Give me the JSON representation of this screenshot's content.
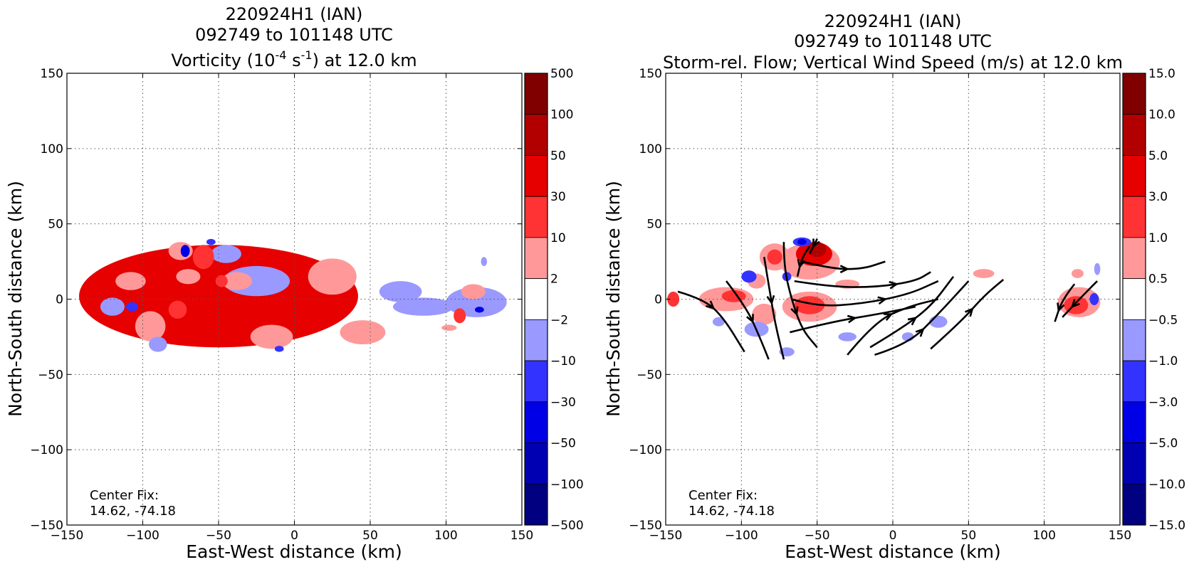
{
  "chart_data": [
    {
      "type": "heatmap",
      "title_lines": [
        "220924H1 (IAN)",
        "092749 to 101148 UTC"
      ],
      "title_var": {
        "pre": "Vorticity (10",
        "sup1": "-4",
        "mid": " s",
        "sup2": "-1",
        "post": ") at 12.0 km"
      },
      "xlabel": "East-West distance (km)",
      "ylabel": "North-South distance (km)",
      "xlim": [
        -150,
        150
      ],
      "ylim": [
        -150,
        150
      ],
      "xticks": [
        -150,
        -100,
        -50,
        0,
        50,
        100,
        150
      ],
      "yticks": [
        -150,
        -100,
        -50,
        0,
        50,
        100,
        150
      ],
      "xtick_labels": [
        "−150",
        "−100",
        "−50",
        "0",
        "50",
        "100",
        "150"
      ],
      "ytick_labels": [
        "−150",
        "−100",
        "−50",
        "0",
        "50",
        "100",
        "150"
      ],
      "grid": true,
      "annotation": [
        "Center Fix:",
        "14.62, -74.18"
      ],
      "colorbar": {
        "levels": [
          "500",
          "100",
          "50",
          "30",
          "10",
          "2",
          "−2",
          "−10",
          "−30",
          "−50",
          "−100",
          "−500"
        ],
        "colors": [
          "#800000",
          "#b20000",
          "#e60000",
          "#ff3333",
          "#ff9999",
          "#ffffff",
          "#9999ff",
          "#3333ff",
          "#0000e6",
          "#0000b2",
          "#000080"
        ]
      },
      "regions": [
        {
          "x": -50,
          "y": 2,
          "rx": 92,
          "ry": 34,
          "level": 2
        },
        {
          "x": -25,
          "y": 12,
          "rx": 22,
          "ry": 10,
          "level": 6
        },
        {
          "x": 85,
          "y": -5,
          "rx": 20,
          "ry": 6,
          "level": 6
        },
        {
          "x": 25,
          "y": 15,
          "rx": 16,
          "ry": 12,
          "level": 4
        },
        {
          "x": -38,
          "y": 12,
          "rx": 10,
          "ry": 6,
          "level": 4
        },
        {
          "x": -75,
          "y": 32,
          "rx": 8,
          "ry": 6,
          "level": 4
        },
        {
          "x": -70,
          "y": 15,
          "rx": 8,
          "ry": 5,
          "level": 4
        },
        {
          "x": -108,
          "y": 12,
          "rx": 10,
          "ry": 6,
          "level": 4
        },
        {
          "x": -95,
          "y": -18,
          "rx": 10,
          "ry": 10,
          "level": 4
        },
        {
          "x": -15,
          "y": -25,
          "rx": 14,
          "ry": 8,
          "level": 4
        },
        {
          "x": 45,
          "y": -22,
          "rx": 15,
          "ry": 8,
          "level": 4
        },
        {
          "x": -45,
          "y": 30,
          "rx": 10,
          "ry": 6,
          "level": 6
        },
        {
          "x": -120,
          "y": -5,
          "rx": 8,
          "ry": 6,
          "level": 6
        },
        {
          "x": -90,
          "y": -30,
          "rx": 6,
          "ry": 5,
          "level": 6
        },
        {
          "x": 70,
          "y": 5,
          "rx": 14,
          "ry": 7,
          "level": 6
        },
        {
          "x": -60,
          "y": 28,
          "rx": 7,
          "ry": 8,
          "level": 3
        },
        {
          "x": -77,
          "y": -7,
          "rx": 6,
          "ry": 6,
          "level": 3
        },
        {
          "x": -48,
          "y": 12,
          "rx": 4,
          "ry": 4,
          "level": 3
        },
        {
          "x": -72,
          "y": 32,
          "rx": 3,
          "ry": 4,
          "level": 8
        },
        {
          "x": -107,
          "y": -5,
          "rx": 4,
          "ry": 3,
          "level": 7
        },
        {
          "x": -55,
          "y": 38,
          "rx": 3,
          "ry": 2,
          "level": 7
        },
        {
          "x": -10,
          "y": -33,
          "rx": 3,
          "ry": 2,
          "level": 7
        },
        {
          "x": 120,
          "y": -2,
          "rx": 20,
          "ry": 10,
          "level": 6
        },
        {
          "x": 118,
          "y": 5,
          "rx": 8,
          "ry": 5,
          "level": 4
        },
        {
          "x": 109,
          "y": -11,
          "rx": 4,
          "ry": 5,
          "level": 3
        },
        {
          "x": 122,
          "y": -7,
          "rx": 3,
          "ry": 2,
          "level": 8
        },
        {
          "x": 102,
          "y": -19,
          "rx": 5,
          "ry": 2,
          "level": 4
        },
        {
          "x": 125,
          "y": 25,
          "rx": 2,
          "ry": 3,
          "level": 6
        }
      ]
    },
    {
      "type": "heatmap",
      "title_lines": [
        "220924H1 (IAN)",
        "092749 to 101148 UTC"
      ],
      "title_var": {
        "pre": "Storm-rel. Flow; Vertical Wind Speed (m/s) at 12.0 km",
        "sup1": "",
        "mid": "",
        "sup2": "",
        "post": ""
      },
      "xlabel": "East-West distance (km)",
      "ylabel": "North-South distance (km)",
      "xlim": [
        -150,
        150
      ],
      "ylim": [
        -150,
        150
      ],
      "xticks": [
        -150,
        -100,
        -50,
        0,
        50,
        100,
        150
      ],
      "yticks": [
        -150,
        -100,
        -50,
        0,
        50,
        100,
        150
      ],
      "xtick_labels": [
        "−150",
        "−100",
        "−50",
        "0",
        "50",
        "100",
        "150"
      ],
      "ytick_labels": [
        "−150",
        "−100",
        "−50",
        "0",
        "50",
        "100",
        "150"
      ],
      "grid": true,
      "annotation": [
        "Center Fix:",
        "14.62, -74.18"
      ],
      "colorbar": {
        "levels": [
          "15.0",
          "10.0",
          "5.0",
          "3.0",
          "1.0",
          "0.5",
          "−0.5",
          "−1.0",
          "−3.0",
          "−5.0",
          "−10.0",
          "−15.0"
        ],
        "colors": [
          "#800000",
          "#b20000",
          "#e60000",
          "#ff3333",
          "#ff9999",
          "#ffffff",
          "#9999ff",
          "#3333ff",
          "#0000e6",
          "#0000b2",
          "#000080"
        ]
      },
      "regions": [
        {
          "x": -55,
          "y": 25,
          "rx": 20,
          "ry": 12,
          "level": 4
        },
        {
          "x": -52,
          "y": 30,
          "rx": 12,
          "ry": 8,
          "level": 2
        },
        {
          "x": -50,
          "y": 33,
          "rx": 6,
          "ry": 5,
          "level": 1
        },
        {
          "x": -78,
          "y": 28,
          "rx": 10,
          "ry": 9,
          "level": 4
        },
        {
          "x": -78,
          "y": 28,
          "rx": 5,
          "ry": 5,
          "level": 3
        },
        {
          "x": -55,
          "y": -5,
          "rx": 18,
          "ry": 10,
          "level": 4
        },
        {
          "x": -55,
          "y": -4,
          "rx": 10,
          "ry": 6,
          "level": 3
        },
        {
          "x": -110,
          "y": 0,
          "rx": 18,
          "ry": 8,
          "level": 4
        },
        {
          "x": -105,
          "y": 2,
          "rx": 8,
          "ry": 4,
          "level": 3
        },
        {
          "x": -145,
          "y": 0,
          "rx": 4,
          "ry": 5,
          "level": 3
        },
        {
          "x": -85,
          "y": -10,
          "rx": 8,
          "ry": 7,
          "level": 4
        },
        {
          "x": -90,
          "y": 12,
          "rx": 6,
          "ry": 5,
          "level": 4
        },
        {
          "x": -30,
          "y": 10,
          "rx": 8,
          "ry": 3,
          "level": 4
        },
        {
          "x": 60,
          "y": 17,
          "rx": 7,
          "ry": 3,
          "level": 4
        },
        {
          "x": 123,
          "y": -2,
          "rx": 14,
          "ry": 10,
          "level": 4
        },
        {
          "x": 121,
          "y": -4,
          "rx": 8,
          "ry": 6,
          "level": 3
        },
        {
          "x": 122,
          "y": 17,
          "rx": 4,
          "ry": 3,
          "level": 4
        },
        {
          "x": -60,
          "y": 38,
          "rx": 6,
          "ry": 3,
          "level": 7
        },
        {
          "x": -60,
          "y": 38,
          "rx": 3,
          "ry": 2,
          "level": 8
        },
        {
          "x": -95,
          "y": 15,
          "rx": 5,
          "ry": 4,
          "level": 7
        },
        {
          "x": -70,
          "y": 15,
          "rx": 3,
          "ry": 3,
          "level": 7
        },
        {
          "x": -90,
          "y": -20,
          "rx": 8,
          "ry": 5,
          "level": 6
        },
        {
          "x": -30,
          "y": -25,
          "rx": 6,
          "ry": 3,
          "level": 6
        },
        {
          "x": -70,
          "y": -35,
          "rx": 5,
          "ry": 3,
          "level": 6
        },
        {
          "x": 30,
          "y": -15,
          "rx": 6,
          "ry": 4,
          "level": 6
        },
        {
          "x": 10,
          "y": -25,
          "rx": 4,
          "ry": 3,
          "level": 6
        },
        {
          "x": -115,
          "y": -15,
          "rx": 4,
          "ry": 3,
          "level": 6
        },
        {
          "x": 135,
          "y": 20,
          "rx": 2,
          "ry": 4,
          "level": 6
        },
        {
          "x": 133,
          "y": 0,
          "rx": 3,
          "ry": 4,
          "level": 7
        }
      ],
      "streamlines": [
        [
          [
            -142,
            5
          ],
          [
            -125,
            0
          ],
          [
            -112,
            -12
          ],
          [
            -98,
            -35
          ]
        ],
        [
          [
            -110,
            12
          ],
          [
            -97,
            -5
          ],
          [
            -88,
            -25
          ],
          [
            -82,
            -40
          ]
        ],
        [
          [
            -85,
            28
          ],
          [
            -82,
            10
          ],
          [
            -78,
            -15
          ],
          [
            -72,
            -40
          ]
        ],
        [
          [
            -72,
            38
          ],
          [
            -72,
            22
          ],
          [
            -67,
            0
          ],
          [
            -60,
            -20
          ],
          [
            -50,
            -32
          ]
        ],
        [
          [
            -30,
            -37
          ],
          [
            -12,
            -15
          ],
          [
            10,
            -5
          ],
          [
            30,
            0
          ]
        ],
        [
          [
            -15,
            -32
          ],
          [
            5,
            -20
          ],
          [
            25,
            -5
          ],
          [
            40,
            15
          ]
        ],
        [
          [
            -12,
            -37
          ],
          [
            10,
            -30
          ],
          [
            30,
            -10
          ],
          [
            50,
            12
          ]
        ],
        [
          [
            25,
            -33
          ],
          [
            45,
            -15
          ],
          [
            60,
            2
          ],
          [
            73,
            13
          ]
        ],
        [
          [
            -68,
            -22
          ],
          [
            -40,
            -15
          ],
          [
            -10,
            -10
          ],
          [
            15,
            -5
          ]
        ],
        [
          [
            -67,
            0
          ],
          [
            -50,
            -5
          ],
          [
            -20,
            -3
          ],
          [
            10,
            3
          ],
          [
            30,
            12
          ]
        ],
        [
          [
            -65,
            12
          ],
          [
            -40,
            8
          ],
          [
            -10,
            8
          ],
          [
            15,
            12
          ],
          [
            25,
            18
          ]
        ],
        [
          [
            -60,
            25
          ],
          [
            -40,
            20
          ],
          [
            -20,
            20
          ],
          [
            -5,
            25
          ]
        ],
        [
          [
            -55,
            35
          ],
          [
            -60,
            28
          ],
          [
            -63,
            15
          ]
        ],
        [
          [
            -50,
            40
          ],
          [
            -55,
            30
          ]
        ],
        [
          [
            120,
            10
          ],
          [
            112,
            0
          ],
          [
            107,
            -15
          ]
        ],
        [
          [
            135,
            12
          ],
          [
            125,
            2
          ],
          [
            112,
            -12
          ]
        ]
      ]
    }
  ]
}
